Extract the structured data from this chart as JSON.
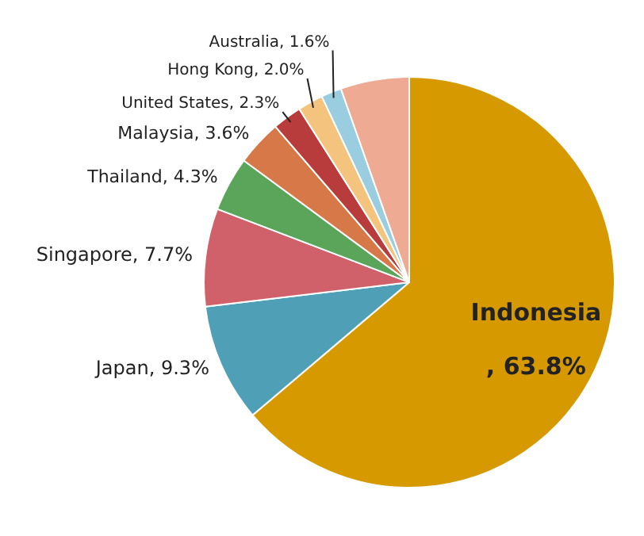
{
  "chart_data": {
    "type": "pie",
    "categories": [
      "Indonesia",
      "Japan",
      "Singapore",
      "Thailand",
      "Malaysia",
      "United States",
      "Hong Kong",
      "Australia",
      null
    ],
    "values": [
      63.8,
      9.3,
      7.7,
      4.3,
      3.6,
      2.3,
      2.0,
      1.6,
      5.4
    ],
    "value_labels": [
      ", 63.8%",
      "9.3%",
      "7.7%",
      "4.3%",
      "3.6%",
      "2.3%",
      "2.0%",
      "1.6%",
      null
    ],
    "colors": [
      "#d69a00",
      "#4fa0b6",
      "#d0606a",
      "#5aa55a",
      "#d67848",
      "#b83c3c",
      "#f4c47e",
      "#9acde0",
      "#eeaa92"
    ],
    "legend": false
  }
}
